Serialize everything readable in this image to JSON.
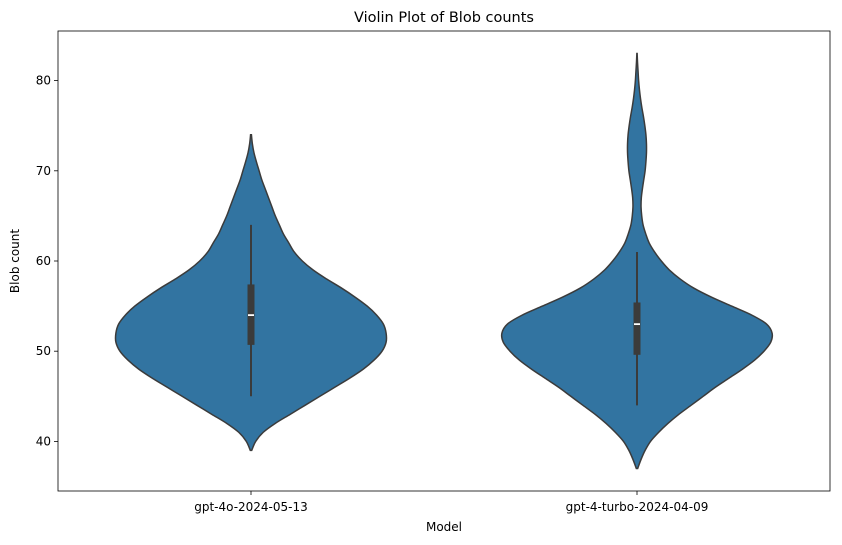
{
  "chart_data": {
    "type": "violin",
    "title": "Violin Plot of Blob counts",
    "xlabel": "Model",
    "ylabel": "Blob count",
    "ylim": [
      34.5,
      85.5
    ],
    "yticks": [
      40,
      50,
      60,
      70,
      80
    ],
    "grid": false,
    "color": "#3274a1",
    "outline_color": "#3b3b3b",
    "categories": [
      "gpt-4o-2024-05-13",
      "gpt-4-turbo-2024-04-09"
    ],
    "series": [
      {
        "category": "gpt-4o-2024-05-13",
        "range": [
          39,
          74
        ],
        "median": 54,
        "q1": 50.7,
        "q3": 57.4,
        "whisker_low": 45,
        "whisker_high": 64,
        "density_profile": [
          [
            39,
            0.005
          ],
          [
            40,
            0.035
          ],
          [
            41,
            0.09
          ],
          [
            42,
            0.18
          ],
          [
            43,
            0.29
          ],
          [
            44,
            0.4
          ],
          [
            45,
            0.51
          ],
          [
            46,
            0.62
          ],
          [
            47,
            0.73
          ],
          [
            48,
            0.83
          ],
          [
            49,
            0.91
          ],
          [
            50,
            0.97
          ],
          [
            51,
            1.0
          ],
          [
            52,
            1.0
          ],
          [
            53,
            0.98
          ],
          [
            54,
            0.93
          ],
          [
            55,
            0.86
          ],
          [
            56,
            0.77
          ],
          [
            57,
            0.67
          ],
          [
            58,
            0.56
          ],
          [
            59,
            0.46
          ],
          [
            60,
            0.38
          ],
          [
            61,
            0.32
          ],
          [
            62,
            0.28
          ],
          [
            63,
            0.24
          ],
          [
            64,
            0.21
          ],
          [
            65,
            0.18
          ],
          [
            66,
            0.155
          ],
          [
            67,
            0.13
          ],
          [
            68,
            0.105
          ],
          [
            69,
            0.08
          ],
          [
            70,
            0.06
          ],
          [
            71,
            0.04
          ],
          [
            72,
            0.022
          ],
          [
            73,
            0.01
          ],
          [
            74,
            0.003
          ]
        ]
      },
      {
        "category": "gpt-4-turbo-2024-04-09",
        "range": [
          37,
          83
        ],
        "median": 53,
        "q1": 49.6,
        "q3": 55.4,
        "whisker_low": 44,
        "whisker_high": 61,
        "density_profile": [
          [
            37,
            0.005
          ],
          [
            38,
            0.03
          ],
          [
            39,
            0.06
          ],
          [
            40,
            0.1
          ],
          [
            41,
            0.16
          ],
          [
            42,
            0.23
          ],
          [
            43,
            0.31
          ],
          [
            44,
            0.4
          ],
          [
            45,
            0.49
          ],
          [
            46,
            0.58
          ],
          [
            47,
            0.68
          ],
          [
            48,
            0.78
          ],
          [
            49,
            0.87
          ],
          [
            50,
            0.94
          ],
          [
            51,
            0.99
          ],
          [
            52,
            1.0
          ],
          [
            53,
            0.96
          ],
          [
            54,
            0.85
          ],
          [
            55,
            0.7
          ],
          [
            56,
            0.55
          ],
          [
            57,
            0.42
          ],
          [
            58,
            0.32
          ],
          [
            59,
            0.24
          ],
          [
            60,
            0.18
          ],
          [
            61,
            0.13
          ],
          [
            62,
            0.09
          ],
          [
            63,
            0.065
          ],
          [
            64,
            0.045
          ],
          [
            65,
            0.035
          ],
          [
            66,
            0.03
          ],
          [
            67,
            0.032
          ],
          [
            68,
            0.04
          ],
          [
            69,
            0.05
          ],
          [
            70,
            0.06
          ],
          [
            71,
            0.066
          ],
          [
            72,
            0.07
          ],
          [
            73,
            0.07
          ],
          [
            74,
            0.066
          ],
          [
            75,
            0.058
          ],
          [
            76,
            0.048
          ],
          [
            77,
            0.036
          ],
          [
            78,
            0.026
          ],
          [
            79,
            0.018
          ],
          [
            80,
            0.012
          ],
          [
            81,
            0.008
          ],
          [
            82,
            0.004
          ],
          [
            83,
            0.001
          ]
        ]
      }
    ]
  }
}
